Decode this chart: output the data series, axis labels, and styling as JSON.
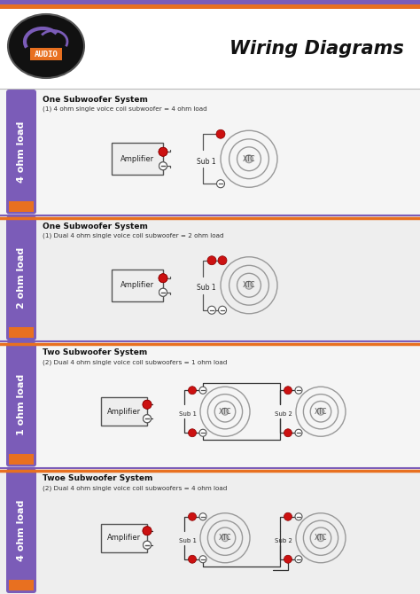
{
  "bg_color": "#f0f0f0",
  "header_bg": "#ffffff",
  "stripe_purple": "#7b5cb8",
  "stripe_orange": "#e87020",
  "title_text": "Wiring Diagrams",
  "sidebar_purple": "#7b5cb8",
  "sidebar_orange": "#e87020",
  "wire_dark": "#333333",
  "red_dot": "#cc1111",
  "amp_fill": "#eeeeee",
  "sub_fill": "#ffffff",
  "spk_ring": "#aaaaaa",
  "sections": [
    {
      "label": "4 ohm load",
      "title": "One Subwoofer System",
      "subtitle": "(1) 4 ohm single voice coil subwoofer = 4 ohm load",
      "num_subs": 1,
      "dual_coil": false
    },
    {
      "label": "2 ohm load",
      "title": "One Subwoofer System",
      "subtitle": "(1) Dual 4 ohm single voice coil subwoofer = 2 ohm load",
      "num_subs": 1,
      "dual_coil": true
    },
    {
      "label": "1 ohm load",
      "title": "Two Subwoofer System",
      "subtitle": "(2) Dual 4 ohm single voice coil subwoofers = 1 ohm load",
      "num_subs": 2,
      "dual_coil": true,
      "series": false
    },
    {
      "label": "4 ohm load",
      "title": "Twoe Subwoofer System",
      "subtitle": "(2) Dual 4 ohm single voice coil subwoofers = 4 ohm load",
      "num_subs": 2,
      "dual_coil": true,
      "series": true
    }
  ]
}
